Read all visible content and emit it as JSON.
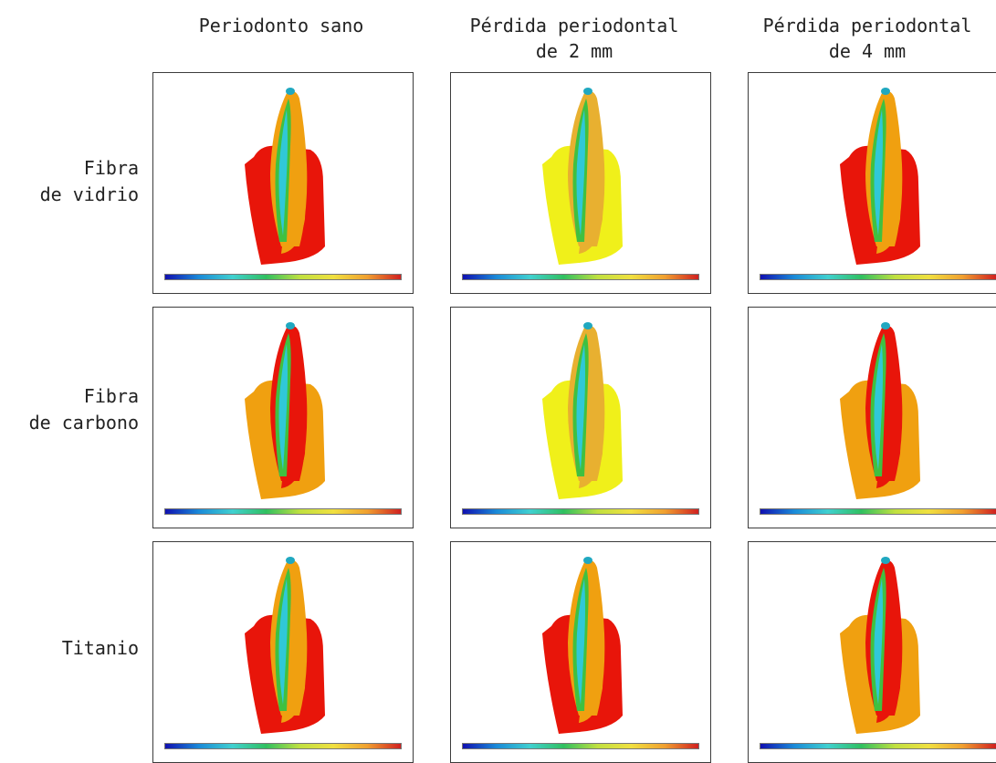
{
  "figure": {
    "columns": [
      {
        "id": "sano",
        "label": "Periodonto sano"
      },
      {
        "id": "p2",
        "label": "Pérdida periodontal\nde 2 mm"
      },
      {
        "id": "p4",
        "label": "Pérdida periodontal\nde 4 mm"
      }
    ],
    "rows": [
      {
        "id": "vidrio",
        "label": "Fibra\nde vidrio"
      },
      {
        "id": "carbono",
        "label": "Fibra\nde carbono"
      },
      {
        "id": "titanio",
        "label": "Titanio"
      }
    ],
    "panels": [
      {
        "row": "vidrio",
        "col": "sano",
        "fill": "#e8150a",
        "accent": "#f0a010"
      },
      {
        "row": "vidrio",
        "col": "p2",
        "fill": "#f0f01a",
        "accent": "#e8b030"
      },
      {
        "row": "vidrio",
        "col": "p4",
        "fill": "#e8150a",
        "accent": "#f0a010"
      },
      {
        "row": "carbono",
        "col": "sano",
        "fill": "#f0a010",
        "accent": "#e8150a"
      },
      {
        "row": "carbono",
        "col": "p2",
        "fill": "#f0f01a",
        "accent": "#e8b030"
      },
      {
        "row": "carbono",
        "col": "p4",
        "fill": "#f0a010",
        "accent": "#e8150a"
      },
      {
        "row": "titanio",
        "col": "sano",
        "fill": "#e8150a",
        "accent": "#f0a010"
      },
      {
        "row": "titanio",
        "col": "p2",
        "fill": "#e8150a",
        "accent": "#f0a010"
      },
      {
        "row": "titanio",
        "col": "p4",
        "fill": "#f0a010",
        "accent": "#e8150a"
      }
    ],
    "colorbar": [
      "#1010b0",
      "#1a8ad8",
      "#40d0d0",
      "#30c060",
      "#c0e040",
      "#f0e040",
      "#f0a030",
      "#d02020"
    ]
  }
}
